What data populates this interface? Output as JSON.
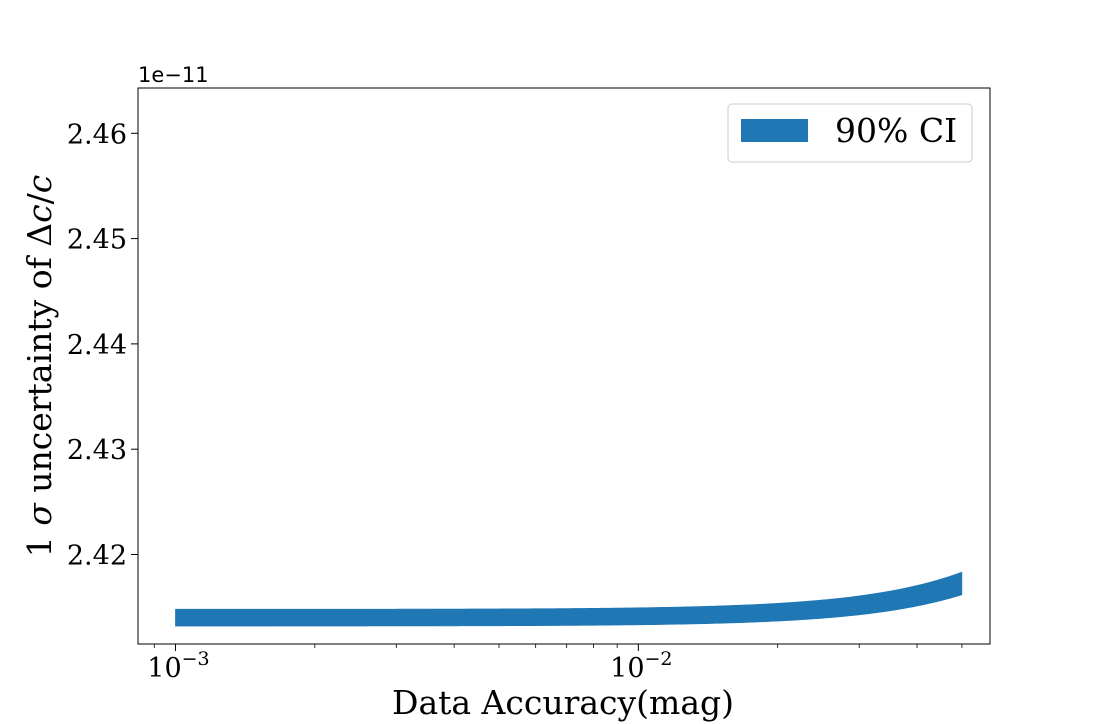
{
  "chart_data": {
    "type": "area",
    "title": "",
    "xlabel": "Data Accuracy(mag)",
    "ylabel": "1 σ uncertainty of Δc/c",
    "ylabel_parts": {
      "prefix": "1 ",
      "sigma": "σ",
      "middle": " uncertainty of ",
      "delta": "Δ",
      "c1": "c",
      "slash": "/",
      "c2": "c"
    },
    "x_scale": "log",
    "xlim": [
      0.00083,
      0.0575
    ],
    "ylim": [
      2.4115e-11,
      2.4643e-11
    ],
    "y_offset_text": "1e−11",
    "x_ticks": [
      {
        "value": 0.001,
        "base": "10",
        "exp": "−3"
      },
      {
        "value": 0.01,
        "base": "10",
        "exp": "−2"
      }
    ],
    "y_ticks": [
      {
        "value": 2.42e-11,
        "label": "2.42"
      },
      {
        "value": 2.43e-11,
        "label": "2.43"
      },
      {
        "value": 2.44e-11,
        "label": "2.44"
      },
      {
        "value": 2.45e-11,
        "label": "2.45"
      },
      {
        "value": 2.46e-11,
        "label": "2.46"
      }
    ],
    "grid": false,
    "legend": {
      "position": "upper-right",
      "entries": [
        {
          "label": "90% CI",
          "color": "#1f77b4"
        }
      ]
    },
    "series": [
      {
        "name": "90% CI",
        "color": "#1f77b4",
        "model": {
          "base": 2.414e-11,
          "coef": 1.3e-11,
          "power": 2,
          "band_rel_halfwidth": 0.085
        },
        "x_range": [
          0.001,
          0.05
        ]
      }
    ]
  }
}
